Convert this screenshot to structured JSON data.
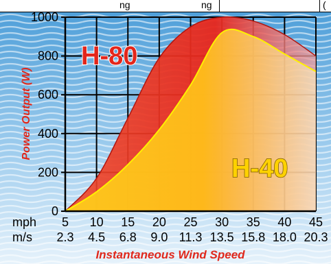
{
  "header_fragments": [
    "ng",
    "ng",
    "("
  ],
  "chart_data": {
    "type": "area",
    "ylabel": "Power Output (W)",
    "xlabel": "Instantaneous Wind Speed",
    "x_rows": [
      {
        "unit": "mph",
        "ticks": [
          "5",
          "10",
          "15",
          "20",
          "25",
          "30",
          "35",
          "40",
          "45"
        ]
      },
      {
        "unit": "m/s",
        "ticks": [
          "2.3",
          "4.5",
          "6.8",
          "9.0",
          "11.3",
          "13.5",
          "15.8",
          "18.0",
          "20.3"
        ]
      }
    ],
    "x_values_mph": [
      5,
      10,
      15,
      20,
      25,
      30,
      35,
      40,
      45
    ],
    "y_ticks": [
      "0",
      "200",
      "400",
      "600",
      "800",
      "1000"
    ],
    "ylim": [
      0,
      1000
    ],
    "xlim_mph": [
      5,
      45
    ],
    "grid": true,
    "series": [
      {
        "name": "H-80",
        "color": "#e3261b",
        "label_color": "#e3261b",
        "values": [
          0,
          170,
          480,
          790,
          950,
          1000,
          980,
          910,
          800
        ]
      },
      {
        "name": "H-40",
        "color": "#ffe600",
        "label_color": "#ffd200",
        "values": [
          0,
          100,
          240,
          420,
          650,
          920,
          900,
          810,
          720
        ]
      }
    ],
    "colors": {
      "sky_top": "#5aa6dd",
      "sky_bottom": "#d9ecf8",
      "grid": "#000000",
      "title": "#e0281c"
    }
  }
}
